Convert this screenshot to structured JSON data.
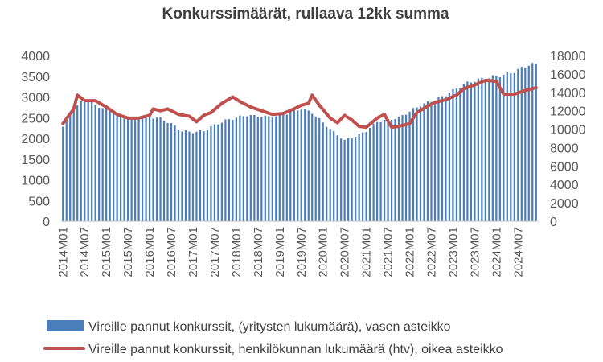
{
  "chart_data": {
    "type": "bar",
    "title": "Konkurssimäärät, rullaava 12kk summa",
    "x_tick_labels": [
      "2014M01",
      "2014M07",
      "2015M01",
      "2015M07",
      "2016M01",
      "2016M07",
      "2017M01",
      "2017M07",
      "2018M01",
      "2018M07",
      "2019M01",
      "2019M07",
      "2020M01",
      "2020M07",
      "2021M01",
      "2021M07",
      "2022M01",
      "2022M07",
      "2023M01",
      "2023M07",
      "2024M01",
      "2024M07"
    ],
    "left_axis": {
      "min": 0,
      "max": 4000,
      "ticks": [
        "0",
        "500",
        "1000",
        "1500",
        "2000",
        "2500",
        "3000",
        "3500",
        "4000"
      ]
    },
    "right_axis": {
      "min": 0,
      "max": 18000,
      "ticks": [
        "0",
        "2000",
        "4000",
        "6000",
        "8000",
        "10000",
        "12000",
        "14000",
        "16000",
        "18000"
      ]
    },
    "grid": false,
    "legend_position": "bottom",
    "series": [
      {
        "name": "Vireille pannut konkurssit, (yritysten lukumäärä), vasen asteikko",
        "kind": "bar",
        "axis": "left",
        "color": "#4a7ebb",
        "anchors": [
          [
            "2014M01",
            2280
          ],
          [
            "2014M04",
            2700
          ],
          [
            "2014M07",
            2950
          ],
          [
            "2014M10",
            2800
          ],
          [
            "2015M01",
            2700
          ],
          [
            "2015M04",
            2600
          ],
          [
            "2015M07",
            2480
          ],
          [
            "2015M10",
            2500
          ],
          [
            "2016M01",
            2520
          ],
          [
            "2016M04",
            2480
          ],
          [
            "2016M07",
            2350
          ],
          [
            "2016M10",
            2180
          ],
          [
            "2017M01",
            2150
          ],
          [
            "2017M04",
            2180
          ],
          [
            "2017M07",
            2320
          ],
          [
            "2017M10",
            2430
          ],
          [
            "2018M01",
            2500
          ],
          [
            "2018M04",
            2560
          ],
          [
            "2018M07",
            2530
          ],
          [
            "2018M10",
            2520
          ],
          [
            "2019M01",
            2550
          ],
          [
            "2019M04",
            2630
          ],
          [
            "2019M07",
            2720
          ],
          [
            "2019M10",
            2620
          ],
          [
            "2020M01",
            2380
          ],
          [
            "2020M04",
            2150
          ],
          [
            "2020M07",
            1950
          ],
          [
            "2020M10",
            2050
          ],
          [
            "2021M01",
            2180
          ],
          [
            "2021M04",
            2400
          ],
          [
            "2021M07",
            2450
          ],
          [
            "2021M10",
            2500
          ],
          [
            "2022M01",
            2650
          ],
          [
            "2022M04",
            2800
          ],
          [
            "2022M07",
            2900
          ],
          [
            "2022M10",
            3000
          ],
          [
            "2023M01",
            3150
          ],
          [
            "2023M04",
            3300
          ],
          [
            "2023M07",
            3400
          ],
          [
            "2023M10",
            3450
          ],
          [
            "2024M01",
            3500
          ],
          [
            "2024M04",
            3550
          ],
          [
            "2024M07",
            3650
          ],
          [
            "2024M10",
            3780
          ]
        ]
      },
      {
        "name": "Vireille pannut konkurssit, henkilökunnan lukumäärä (htv), oikea asteikko",
        "kind": "line",
        "axis": "right",
        "color": "#c0504d",
        "anchors": [
          [
            "2014M01",
            10600
          ],
          [
            "2014M04",
            12200
          ],
          [
            "2014M05",
            13700
          ],
          [
            "2014M07",
            13100
          ],
          [
            "2014M10",
            13100
          ],
          [
            "2015M01",
            12400
          ],
          [
            "2015M04",
            11600
          ],
          [
            "2015M07",
            11200
          ],
          [
            "2015M10",
            11200
          ],
          [
            "2016M01",
            11500
          ],
          [
            "2016M02",
            12200
          ],
          [
            "2016M04",
            12000
          ],
          [
            "2016M06",
            12200
          ],
          [
            "2016M09",
            11600
          ],
          [
            "2016M12",
            11400
          ],
          [
            "2017M02",
            10800
          ],
          [
            "2017M04",
            11500
          ],
          [
            "2017M06",
            11800
          ],
          [
            "2017M09",
            12800
          ],
          [
            "2017M12",
            13500
          ],
          [
            "2018M02",
            13000
          ],
          [
            "2018M05",
            12400
          ],
          [
            "2018M08",
            12000
          ],
          [
            "2018M11",
            11600
          ],
          [
            "2019M02",
            11700
          ],
          [
            "2019M05",
            12200
          ],
          [
            "2019M07",
            12600
          ],
          [
            "2019M09",
            12800
          ],
          [
            "2019M10",
            13700
          ],
          [
            "2019M12",
            12600
          ],
          [
            "2020M03",
            11200
          ],
          [
            "2020M05",
            10700
          ],
          [
            "2020M07",
            11500
          ],
          [
            "2020M09",
            11000
          ],
          [
            "2020M11",
            10300
          ],
          [
            "2021M01",
            10200
          ],
          [
            "2021M04",
            11200
          ],
          [
            "2021M06",
            11600
          ],
          [
            "2021M08",
            10200
          ],
          [
            "2021M10",
            10300
          ],
          [
            "2022M01",
            10600
          ],
          [
            "2022M03",
            11800
          ],
          [
            "2022M06",
            12500
          ],
          [
            "2022M08",
            12900
          ],
          [
            "2022M11",
            13200
          ],
          [
            "2023M02",
            13700
          ],
          [
            "2023M04",
            14400
          ],
          [
            "2023M07",
            14800
          ],
          [
            "2023M10",
            15300
          ],
          [
            "2024M01",
            15200
          ],
          [
            "2024M03",
            13800
          ],
          [
            "2024M06",
            13800
          ],
          [
            "2024M09",
            14200
          ],
          [
            "2024M12",
            14500
          ]
        ]
      }
    ]
  }
}
